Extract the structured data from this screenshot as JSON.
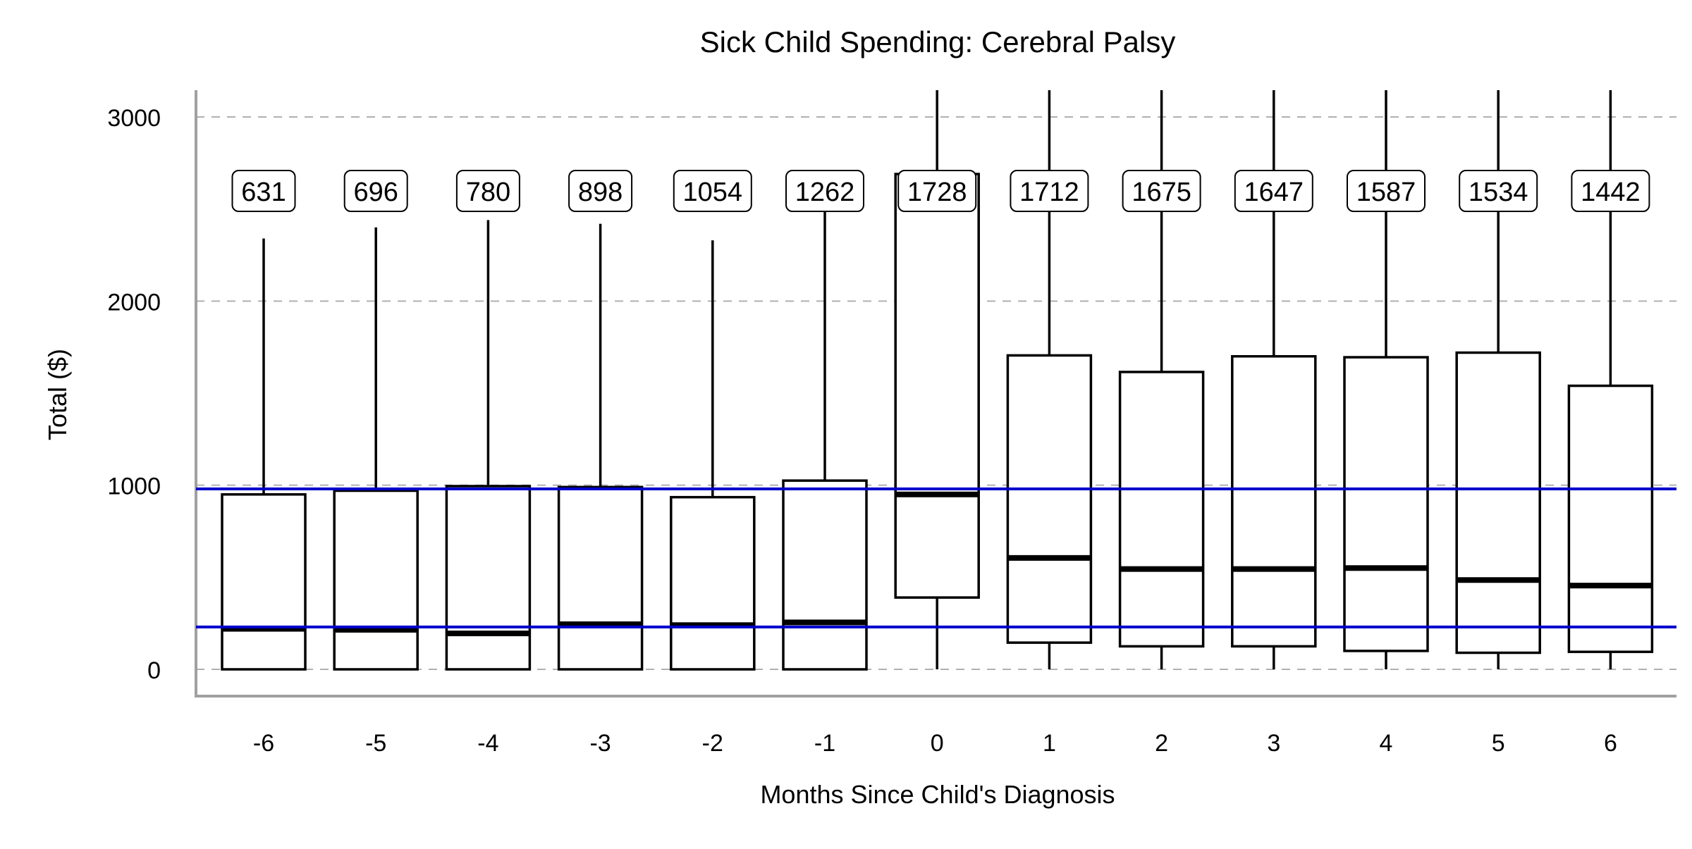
{
  "chart_data": {
    "type": "boxplot",
    "title": "Sick Child Spending: Cerebral Palsy",
    "xlabel": "Months Since Child's Diagnosis",
    "ylabel": "Total ($)",
    "ylim": [
      -150,
      3150
    ],
    "y_ticks": [
      0,
      1000,
      2000,
      3000
    ],
    "grid": "horizontal dashed",
    "categories": [
      "-6",
      "-5",
      "-4",
      "-3",
      "-2",
      "-1",
      "0",
      "1",
      "2",
      "3",
      "4",
      "5",
      "6"
    ],
    "boxes": [
      {
        "category": "-6",
        "min": 0,
        "q1": 0,
        "median": 220,
        "q3": 950,
        "max": 2340,
        "n_label": "631"
      },
      {
        "category": "-5",
        "min": 0,
        "q1": 0,
        "median": 215,
        "q3": 970,
        "max": 2400,
        "n_label": "696"
      },
      {
        "category": "-4",
        "min": 0,
        "q1": 0,
        "median": 195,
        "q3": 995,
        "max": 2440,
        "n_label": "780"
      },
      {
        "category": "-3",
        "min": 0,
        "q1": 0,
        "median": 245,
        "q3": 990,
        "max": 2420,
        "n_label": "898"
      },
      {
        "category": "-2",
        "min": 0,
        "q1": 0,
        "median": 240,
        "q3": 935,
        "max": 2330,
        "n_label": "1054"
      },
      {
        "category": "-1",
        "min": 0,
        "q1": 0,
        "median": 255,
        "q3": 1025,
        "max": 2500,
        "n_label": "1262"
      },
      {
        "category": "0",
        "min": 0,
        "q1": 390,
        "median": 950,
        "q3": 2690,
        "max": 3150,
        "n_label": "1728"
      },
      {
        "category": "1",
        "min": 0,
        "q1": 145,
        "median": 605,
        "q3": 1705,
        "max": 3150,
        "n_label": "1712"
      },
      {
        "category": "2",
        "min": 0,
        "q1": 125,
        "median": 545,
        "q3": 1615,
        "max": 3150,
        "n_label": "1675"
      },
      {
        "category": "3",
        "min": 0,
        "q1": 125,
        "median": 545,
        "q3": 1700,
        "max": 3150,
        "n_label": "1647"
      },
      {
        "category": "4",
        "min": 0,
        "q1": 100,
        "median": 550,
        "q3": 1695,
        "max": 3150,
        "n_label": "1587"
      },
      {
        "category": "5",
        "min": 0,
        "q1": 90,
        "median": 485,
        "q3": 1720,
        "max": 3150,
        "n_label": "1534"
      },
      {
        "category": "6",
        "min": 0,
        "q1": 95,
        "median": 455,
        "q3": 1540,
        "max": 3150,
        "n_label": "1442"
      }
    ],
    "reference_lines": [
      980,
      230
    ],
    "reference_line_color": "#0000cc",
    "box_color": "#000000",
    "fill_color": "#ffffff",
    "grid_color": "#b0b0b0",
    "axis_color": "#a0a0a0"
  }
}
